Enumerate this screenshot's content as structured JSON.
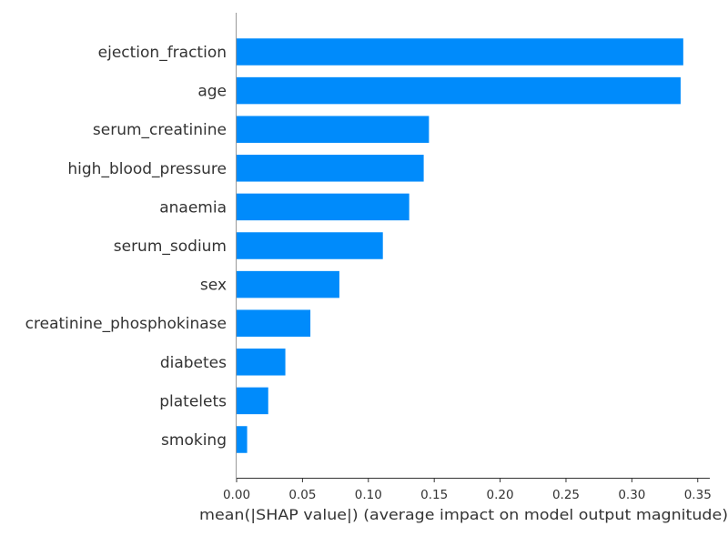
{
  "chart_data": {
    "type": "bar",
    "orientation": "horizontal",
    "title": "",
    "xlabel": "mean(|SHAP value|) (average impact on model output magnitude)",
    "ylabel": "",
    "xlim": [
      0,
      0.355
    ],
    "xticks": [
      "0.00",
      "0.05",
      "0.10",
      "0.15",
      "0.20",
      "0.25",
      "0.30",
      "0.35"
    ],
    "grid": false,
    "bar_color": "#008bfb",
    "categories": [
      "ejection_fraction",
      "age",
      "serum_creatinine",
      "high_blood_pressure",
      "anaemia",
      "serum_sodium",
      "sex",
      "creatinine_phosphokinase",
      "diabetes",
      "platelets",
      "smoking"
    ],
    "values": [
      0.339,
      0.337,
      0.146,
      0.142,
      0.131,
      0.111,
      0.078,
      0.056,
      0.037,
      0.024,
      0.008
    ]
  }
}
